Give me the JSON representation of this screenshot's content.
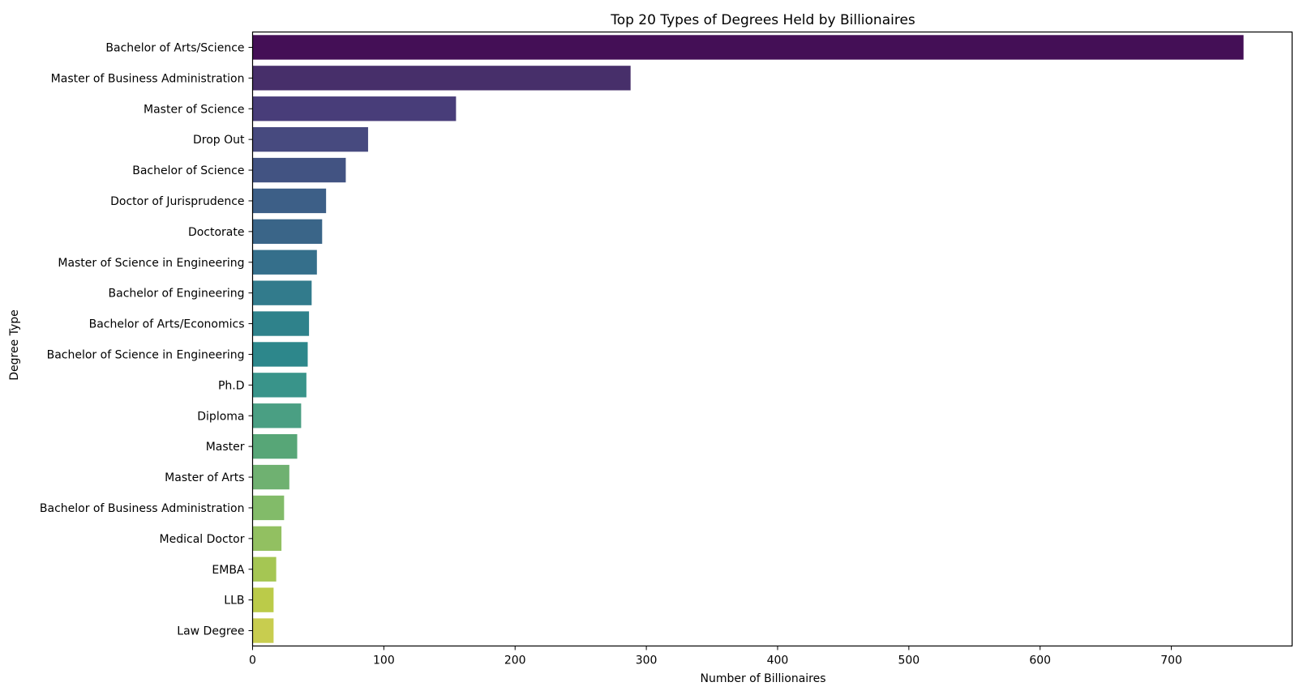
{
  "chart_data": {
    "type": "bar",
    "orientation": "horizontal",
    "title": "Top 20 Types of Degrees Held by Billionaires",
    "xlabel": "Number of Billionaires",
    "ylabel": "Degree Type",
    "xlim": [
      0,
      792
    ],
    "xticks": [
      "0",
      "100",
      "200",
      "300",
      "400",
      "500",
      "600",
      "700"
    ],
    "grid": false,
    "palette": "viridis",
    "categories": [
      "Bachelor of Arts/Science",
      "Master of Business Administration",
      "Master of Science",
      "Drop Out",
      "Bachelor of Science",
      "Doctor of Jurisprudence",
      "Doctorate",
      "Master of Science in Engineering",
      "Bachelor of Engineering",
      "Bachelor of Arts/Economics",
      "Bachelor of Science in Engineering",
      "Ph.D",
      "Diploma",
      "Master",
      "Master of Arts",
      "Bachelor of Business Administration",
      "Medical Doctor",
      "EMBA",
      "LLB",
      "Law Degree"
    ],
    "values": [
      755,
      288,
      155,
      88,
      71,
      56,
      53,
      49,
      45,
      43,
      42,
      41,
      37,
      34,
      28,
      24,
      22,
      18,
      16,
      16
    ],
    "colors": [
      "#440f56",
      "#472f6a",
      "#483d79",
      "#474a7f",
      "#425382",
      "#3d5f87",
      "#3a6588",
      "#356f8b",
      "#327b8c",
      "#2f828b",
      "#2d878b",
      "#39948a",
      "#4a9f83",
      "#57a677",
      "#6fb171",
      "#82bb69",
      "#92c061",
      "#a5c653",
      "#bbcb49",
      "#c8cd4f"
    ]
  }
}
